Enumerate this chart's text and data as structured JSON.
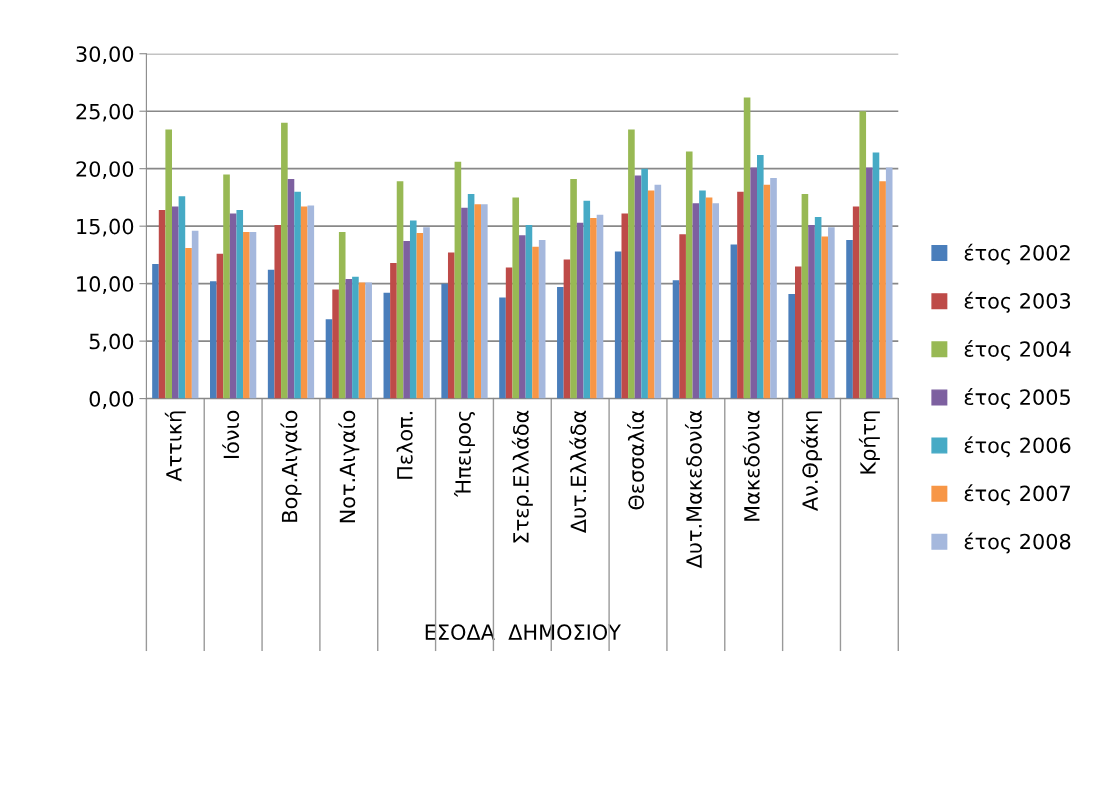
{
  "chart_data": {
    "type": "bar",
    "xlabel": "ΕΣΟΔΑ  ΔΗΜΟΣΙΟΥ",
    "categories": [
      "Αττική",
      "Ιόνιο",
      "Βορ.Αιγαίο",
      "Νοτ.Αιγαίο",
      "Πελοπ.",
      "Ήπειρος",
      "Στερ.Ελλάδα",
      "Δυτ.Ελλάδα",
      "Θεσσαλία",
      "Δυτ.Μακεδονία",
      "Μακεδόνια",
      "Αν.Θράκη",
      "Κρήτη"
    ],
    "series": [
      {
        "name": "έτος 2002",
        "color": "#4a7ebb",
        "values": [
          11.7,
          10.2,
          11.2,
          6.9,
          9.2,
          10.0,
          8.8,
          9.7,
          12.8,
          10.3,
          13.4,
          9.1,
          13.8
        ]
      },
      {
        "name": "έτος 2003",
        "color": "#be4b48",
        "values": [
          16.4,
          12.6,
          15.1,
          9.5,
          11.8,
          12.7,
          11.4,
          12.1,
          16.1,
          14.3,
          18.0,
          11.5,
          16.7
        ]
      },
      {
        "name": "έτος 2004",
        "color": "#98b954",
        "values": [
          23.4,
          19.5,
          24.0,
          14.5,
          18.9,
          20.6,
          17.5,
          19.1,
          23.4,
          21.5,
          26.2,
          17.8,
          25.0
        ]
      },
      {
        "name": "έτος 2005",
        "color": "#7d60a0",
        "values": [
          16.7,
          16.1,
          19.1,
          10.4,
          13.7,
          16.6,
          14.2,
          15.3,
          19.4,
          17.0,
          20.1,
          15.1,
          20.1
        ]
      },
      {
        "name": "έτος 2006",
        "color": "#46aac5",
        "values": [
          17.6,
          16.4,
          18.0,
          10.6,
          15.5,
          17.8,
          15.1,
          17.2,
          20.0,
          18.1,
          21.2,
          15.8,
          21.4
        ]
      },
      {
        "name": "έτος 2007",
        "color": "#f79646",
        "values": [
          13.1,
          14.5,
          16.7,
          10.1,
          14.4,
          16.9,
          13.2,
          15.7,
          18.1,
          17.5,
          18.6,
          14.1,
          18.9
        ]
      },
      {
        "name": "έτος 2008",
        "color": "#a5b8dd",
        "values": [
          14.6,
          14.5,
          16.8,
          10.1,
          14.9,
          16.9,
          13.8,
          16.0,
          18.6,
          17.0,
          19.2,
          14.9,
          20.1
        ]
      }
    ],
    "ylim": [
      0,
      30
    ],
    "yticks": [
      {
        "value": 0,
        "label": "0,00"
      },
      {
        "value": 5,
        "label": "5,00"
      },
      {
        "value": 10,
        "label": "10,00"
      },
      {
        "value": 15,
        "label": "15,00"
      },
      {
        "value": 20,
        "label": "20,00"
      },
      {
        "value": 25,
        "label": "25,00"
      },
      {
        "value": 30,
        "label": "30,00"
      }
    ],
    "grid": "y",
    "legend": "right"
  }
}
